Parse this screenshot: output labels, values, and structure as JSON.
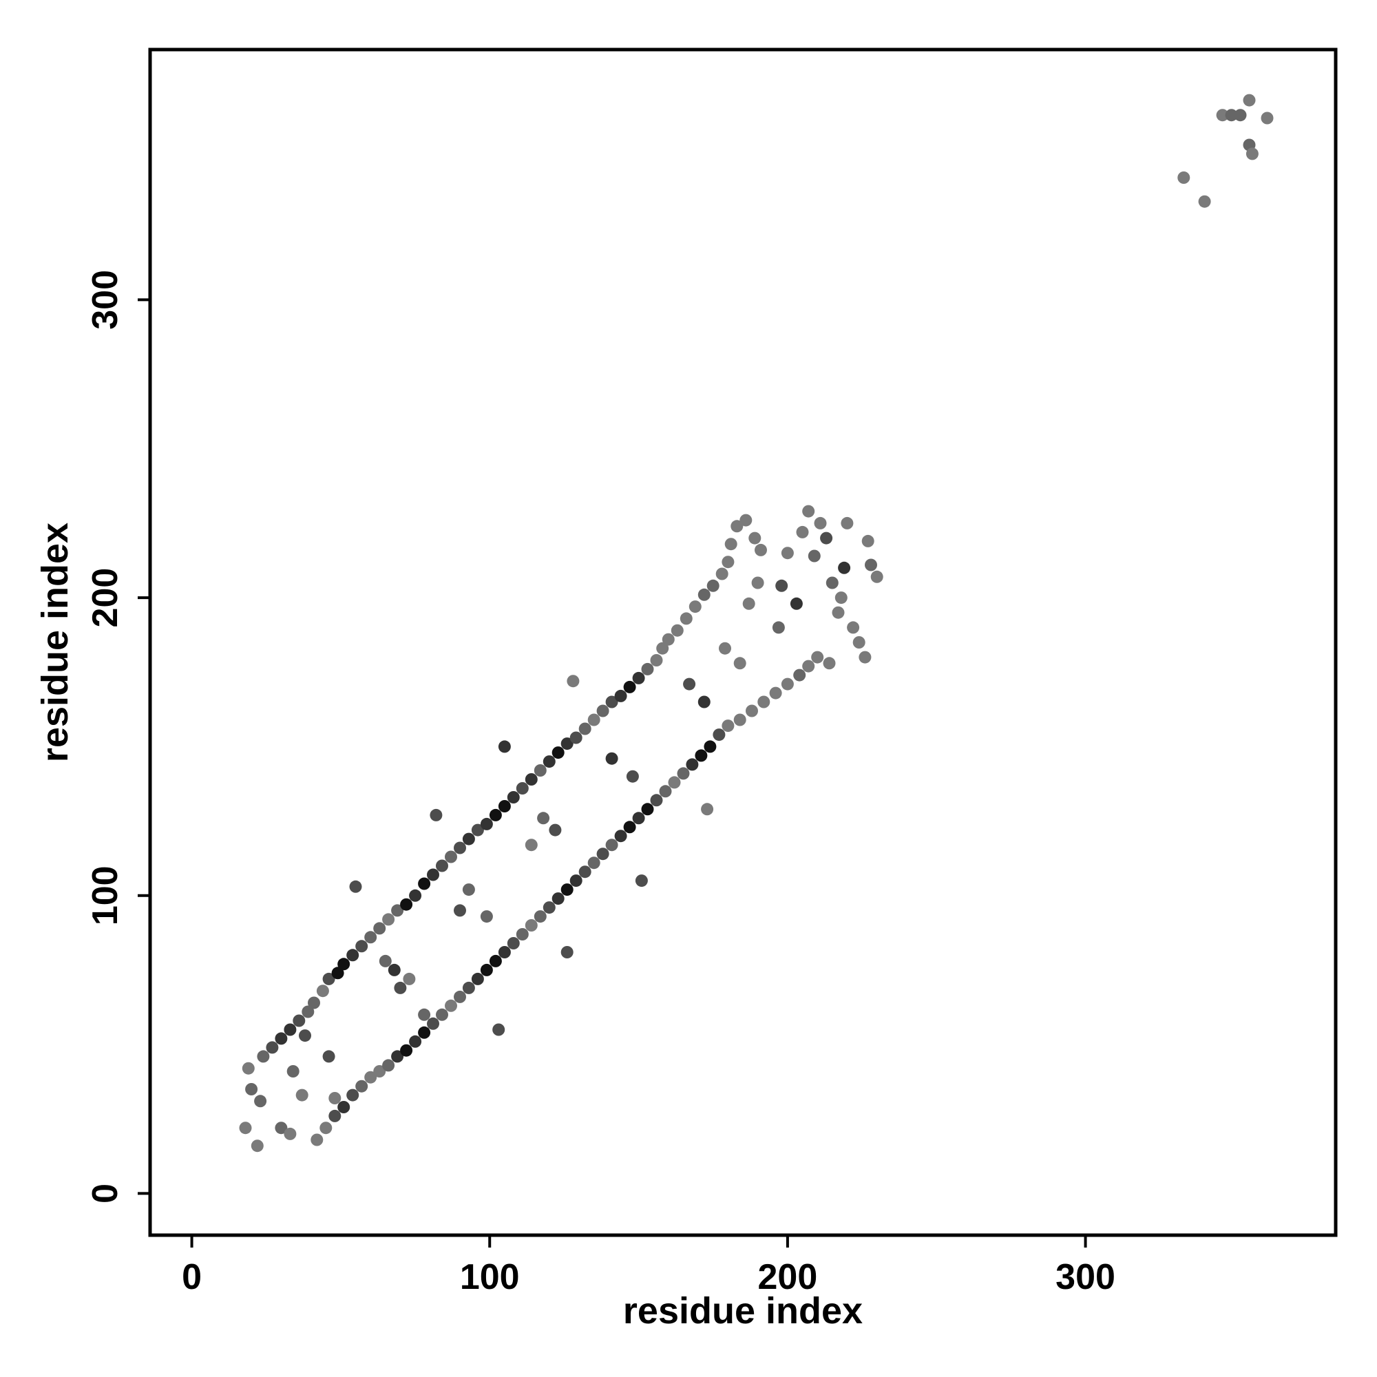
{
  "chart_data": {
    "type": "scatter",
    "title": "",
    "xlabel": "residue index",
    "ylabel": "residue index",
    "xlim": [
      -14,
      384
    ],
    "ylim": [
      -14,
      384
    ],
    "xticks": [
      0,
      100,
      200,
      300
    ],
    "yticks": [
      0,
      100,
      200,
      300
    ],
    "grid": false,
    "legend": "none",
    "point_colors": [
      "#111111",
      "#333333",
      "#4d4d4d",
      "#666666",
      "#7a7a7a"
    ],
    "series": [
      {
        "values": [
          {
            "x": 18,
            "y": 22,
            "s": 4
          },
          {
            "x": 22,
            "y": 16,
            "s": 4
          },
          {
            "x": 23,
            "y": 31,
            "s": 3
          },
          {
            "x": 20,
            "y": 35,
            "s": 3
          },
          {
            "x": 19,
            "y": 42,
            "s": 4
          },
          {
            "x": 24,
            "y": 46,
            "s": 3
          },
          {
            "x": 27,
            "y": 49,
            "s": 2
          },
          {
            "x": 30,
            "y": 52,
            "s": 1
          },
          {
            "x": 33,
            "y": 55,
            "s": 1
          },
          {
            "x": 36,
            "y": 58,
            "s": 2
          },
          {
            "x": 39,
            "y": 61,
            "s": 3
          },
          {
            "x": 41,
            "y": 64,
            "s": 3
          },
          {
            "x": 44,
            "y": 68,
            "s": 4
          },
          {
            "x": 46,
            "y": 72,
            "s": 2
          },
          {
            "x": 49,
            "y": 74,
            "s": 0
          },
          {
            "x": 51,
            "y": 77,
            "s": 0
          },
          {
            "x": 54,
            "y": 80,
            "s": 1
          },
          {
            "x": 57,
            "y": 83,
            "s": 2
          },
          {
            "x": 60,
            "y": 86,
            "s": 3
          },
          {
            "x": 63,
            "y": 89,
            "s": 3
          },
          {
            "x": 66,
            "y": 92,
            "s": 4
          },
          {
            "x": 69,
            "y": 95,
            "s": 3
          },
          {
            "x": 72,
            "y": 97,
            "s": 0
          },
          {
            "x": 75,
            "y": 100,
            "s": 1
          },
          {
            "x": 78,
            "y": 104,
            "s": 0
          },
          {
            "x": 81,
            "y": 107,
            "s": 1
          },
          {
            "x": 84,
            "y": 110,
            "s": 2
          },
          {
            "x": 87,
            "y": 113,
            "s": 3
          },
          {
            "x": 90,
            "y": 116,
            "s": 2
          },
          {
            "x": 93,
            "y": 119,
            "s": 1
          },
          {
            "x": 96,
            "y": 122,
            "s": 2
          },
          {
            "x": 99,
            "y": 124,
            "s": 1
          },
          {
            "x": 102,
            "y": 127,
            "s": 0
          },
          {
            "x": 105,
            "y": 130,
            "s": 0
          },
          {
            "x": 108,
            "y": 133,
            "s": 1
          },
          {
            "x": 111,
            "y": 136,
            "s": 2
          },
          {
            "x": 114,
            "y": 139,
            "s": 1
          },
          {
            "x": 117,
            "y": 142,
            "s": 3
          },
          {
            "x": 120,
            "y": 145,
            "s": 1
          },
          {
            "x": 123,
            "y": 148,
            "s": 0
          },
          {
            "x": 126,
            "y": 151,
            "s": 1
          },
          {
            "x": 129,
            "y": 153,
            "s": 2
          },
          {
            "x": 132,
            "y": 156,
            "s": 3
          },
          {
            "x": 135,
            "y": 159,
            "s": 4
          },
          {
            "x": 138,
            "y": 162,
            "s": 3
          },
          {
            "x": 141,
            "y": 165,
            "s": 2
          },
          {
            "x": 144,
            "y": 167,
            "s": 1
          },
          {
            "x": 147,
            "y": 170,
            "s": 0
          },
          {
            "x": 150,
            "y": 173,
            "s": 1
          },
          {
            "x": 153,
            "y": 176,
            "s": 3
          },
          {
            "x": 156,
            "y": 179,
            "s": 4
          },
          {
            "x": 158,
            "y": 183,
            "s": 4
          },
          {
            "x": 160,
            "y": 186,
            "s": 4
          },
          {
            "x": 163,
            "y": 189,
            "s": 4
          },
          {
            "x": 166,
            "y": 193,
            "s": 4
          },
          {
            "x": 169,
            "y": 197,
            "s": 4
          },
          {
            "x": 172,
            "y": 201,
            "s": 3
          },
          {
            "x": 175,
            "y": 204,
            "s": 3
          },
          {
            "x": 178,
            "y": 208,
            "s": 4
          },
          {
            "x": 180,
            "y": 212,
            "s": 4
          },
          {
            "x": 181,
            "y": 218,
            "s": 4
          },
          {
            "x": 183,
            "y": 224,
            "s": 4
          },
          {
            "x": 186,
            "y": 226,
            "s": 4
          },
          {
            "x": 189,
            "y": 220,
            "s": 4
          },
          {
            "x": 191,
            "y": 216,
            "s": 4
          },
          {
            "x": 42,
            "y": 18,
            "s": 4
          },
          {
            "x": 45,
            "y": 22,
            "s": 4
          },
          {
            "x": 48,
            "y": 26,
            "s": 2
          },
          {
            "x": 51,
            "y": 29,
            "s": 1
          },
          {
            "x": 54,
            "y": 33,
            "s": 2
          },
          {
            "x": 57,
            "y": 36,
            "s": 3
          },
          {
            "x": 60,
            "y": 39,
            "s": 4
          },
          {
            "x": 63,
            "y": 41,
            "s": 4
          },
          {
            "x": 66,
            "y": 43,
            "s": 3
          },
          {
            "x": 69,
            "y": 46,
            "s": 1
          },
          {
            "x": 72,
            "y": 48,
            "s": 0
          },
          {
            "x": 75,
            "y": 51,
            "s": 1
          },
          {
            "x": 78,
            "y": 54,
            "s": 0
          },
          {
            "x": 81,
            "y": 57,
            "s": 2
          },
          {
            "x": 84,
            "y": 60,
            "s": 3
          },
          {
            "x": 87,
            "y": 63,
            "s": 4
          },
          {
            "x": 90,
            "y": 66,
            "s": 3
          },
          {
            "x": 93,
            "y": 69,
            "s": 2
          },
          {
            "x": 96,
            "y": 72,
            "s": 1
          },
          {
            "x": 99,
            "y": 75,
            "s": 0
          },
          {
            "x": 102,
            "y": 78,
            "s": 0
          },
          {
            "x": 105,
            "y": 81,
            "s": 1
          },
          {
            "x": 108,
            "y": 84,
            "s": 2
          },
          {
            "x": 111,
            "y": 87,
            "s": 3
          },
          {
            "x": 114,
            "y": 90,
            "s": 4
          },
          {
            "x": 117,
            "y": 93,
            "s": 3
          },
          {
            "x": 120,
            "y": 96,
            "s": 2
          },
          {
            "x": 123,
            "y": 99,
            "s": 1
          },
          {
            "x": 126,
            "y": 102,
            "s": 0
          },
          {
            "x": 129,
            "y": 105,
            "s": 1
          },
          {
            "x": 132,
            "y": 108,
            "s": 2
          },
          {
            "x": 135,
            "y": 111,
            "s": 3
          },
          {
            "x": 138,
            "y": 114,
            "s": 2
          },
          {
            "x": 141,
            "y": 117,
            "s": 3
          },
          {
            "x": 144,
            "y": 120,
            "s": 1
          },
          {
            "x": 147,
            "y": 123,
            "s": 0
          },
          {
            "x": 150,
            "y": 126,
            "s": 1
          },
          {
            "x": 153,
            "y": 129,
            "s": 0
          },
          {
            "x": 156,
            "y": 132,
            "s": 2
          },
          {
            "x": 159,
            "y": 135,
            "s": 3
          },
          {
            "x": 162,
            "y": 138,
            "s": 4
          },
          {
            "x": 165,
            "y": 141,
            "s": 3
          },
          {
            "x": 168,
            "y": 144,
            "s": 1
          },
          {
            "x": 171,
            "y": 147,
            "s": 0
          },
          {
            "x": 174,
            "y": 150,
            "s": 0
          },
          {
            "x": 177,
            "y": 154,
            "s": 2
          },
          {
            "x": 180,
            "y": 157,
            "s": 4
          },
          {
            "x": 184,
            "y": 159,
            "s": 4
          },
          {
            "x": 188,
            "y": 162,
            "s": 4
          },
          {
            "x": 192,
            "y": 165,
            "s": 4
          },
          {
            "x": 196,
            "y": 168,
            "s": 4
          },
          {
            "x": 200,
            "y": 171,
            "s": 4
          },
          {
            "x": 204,
            "y": 174,
            "s": 3
          },
          {
            "x": 207,
            "y": 177,
            "s": 4
          },
          {
            "x": 210,
            "y": 180,
            "s": 4
          },
          {
            "x": 30,
            "y": 22,
            "s": 3
          },
          {
            "x": 33,
            "y": 20,
            "s": 4
          },
          {
            "x": 37,
            "y": 33,
            "s": 4
          },
          {
            "x": 34,
            "y": 41,
            "s": 3
          },
          {
            "x": 38,
            "y": 53,
            "s": 2
          },
          {
            "x": 46,
            "y": 46,
            "s": 2
          },
          {
            "x": 55,
            "y": 103,
            "s": 2
          },
          {
            "x": 48,
            "y": 32,
            "s": 4
          },
          {
            "x": 65,
            "y": 78,
            "s": 3
          },
          {
            "x": 68,
            "y": 75,
            "s": 1
          },
          {
            "x": 70,
            "y": 69,
            "s": 2
          },
          {
            "x": 73,
            "y": 72,
            "s": 4
          },
          {
            "x": 78,
            "y": 60,
            "s": 3
          },
          {
            "x": 82,
            "y": 127,
            "s": 2
          },
          {
            "x": 90,
            "y": 95,
            "s": 2
          },
          {
            "x": 93,
            "y": 102,
            "s": 3
          },
          {
            "x": 99,
            "y": 93,
            "s": 3
          },
          {
            "x": 103,
            "y": 55,
            "s": 2
          },
          {
            "x": 105,
            "y": 150,
            "s": 1
          },
          {
            "x": 114,
            "y": 117,
            "s": 4
          },
          {
            "x": 118,
            "y": 126,
            "s": 3
          },
          {
            "x": 122,
            "y": 122,
            "s": 2
          },
          {
            "x": 126,
            "y": 81,
            "s": 2
          },
          {
            "x": 128,
            "y": 172,
            "s": 4
          },
          {
            "x": 141,
            "y": 146,
            "s": 1
          },
          {
            "x": 148,
            "y": 140,
            "s": 2
          },
          {
            "x": 151,
            "y": 105,
            "s": 2
          },
          {
            "x": 167,
            "y": 171,
            "s": 2
          },
          {
            "x": 172,
            "y": 165,
            "s": 1
          },
          {
            "x": 173,
            "y": 129,
            "s": 4
          },
          {
            "x": 179,
            "y": 183,
            "s": 4
          },
          {
            "x": 184,
            "y": 178,
            "s": 4
          },
          {
            "x": 187,
            "y": 198,
            "s": 4
          },
          {
            "x": 190,
            "y": 205,
            "s": 4
          },
          {
            "x": 197,
            "y": 190,
            "s": 3
          },
          {
            "x": 198,
            "y": 204,
            "s": 2
          },
          {
            "x": 200,
            "y": 215,
            "s": 4
          },
          {
            "x": 203,
            "y": 198,
            "s": 1
          },
          {
            "x": 205,
            "y": 222,
            "s": 4
          },
          {
            "x": 207,
            "y": 229,
            "s": 4
          },
          {
            "x": 209,
            "y": 214,
            "s": 3
          },
          {
            "x": 211,
            "y": 225,
            "s": 4
          },
          {
            "x": 213,
            "y": 220,
            "s": 2
          },
          {
            "x": 215,
            "y": 205,
            "s": 3
          },
          {
            "x": 217,
            "y": 195,
            "s": 4
          },
          {
            "x": 219,
            "y": 210,
            "s": 1
          },
          {
            "x": 220,
            "y": 225,
            "s": 4
          },
          {
            "x": 222,
            "y": 190,
            "s": 4
          },
          {
            "x": 224,
            "y": 185,
            "s": 4
          },
          {
            "x": 226,
            "y": 180,
            "s": 4
          },
          {
            "x": 227,
            "y": 219,
            "s": 4
          },
          {
            "x": 228,
            "y": 211,
            "s": 3
          },
          {
            "x": 230,
            "y": 207,
            "s": 4
          },
          {
            "x": 218,
            "y": 200,
            "s": 4
          },
          {
            "x": 214,
            "y": 178,
            "s": 4
          },
          {
            "x": 333,
            "y": 341,
            "s": 4
          },
          {
            "x": 340,
            "y": 333,
            "s": 4
          },
          {
            "x": 346,
            "y": 362,
            "s": 4
          },
          {
            "x": 349,
            "y": 362,
            "s": 3
          },
          {
            "x": 352,
            "y": 362,
            "s": 3
          },
          {
            "x": 355,
            "y": 367,
            "s": 4
          },
          {
            "x": 355,
            "y": 352,
            "s": 3
          },
          {
            "x": 356,
            "y": 349,
            "s": 4
          },
          {
            "x": 361,
            "y": 361,
            "s": 4
          }
        ]
      }
    ]
  }
}
